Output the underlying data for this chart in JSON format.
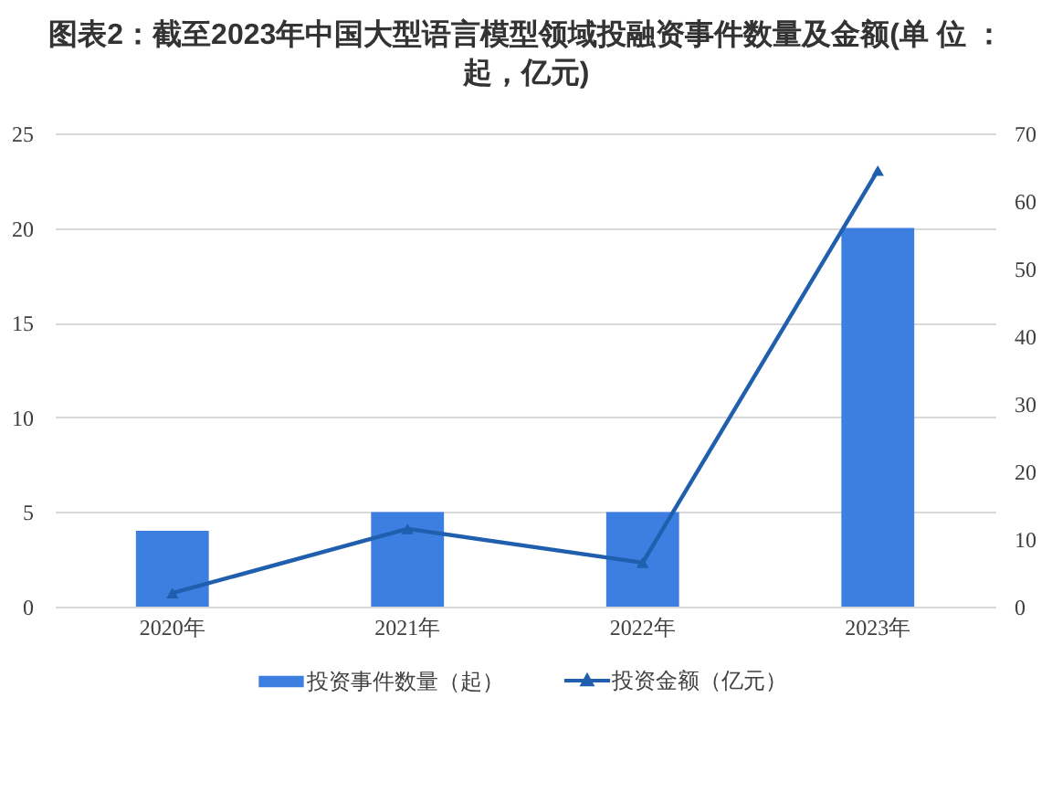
{
  "chart_data": {
    "type": "bar",
    "title": "图表2：截至2023年中国大型语言模型领域投融资事件数量及金额(单 位 ：起，亿元)",
    "categories": [
      "2020年",
      "2021年",
      "2022年",
      "2023年"
    ],
    "series": [
      {
        "name": "投资事件数量（起）",
        "color": "#3c7fe0",
        "values": [
          4,
          5,
          5,
          20
        ]
      },
      {
        "name": "投资金额（亿元）",
        "type": "line",
        "axis": "y2",
        "color": "#1f5fae",
        "values": [
          2,
          11.5,
          6.5,
          64.5
        ]
      }
    ],
    "ylim": [
      0,
      25
    ],
    "yticks": [
      0,
      5,
      10,
      15,
      20,
      25
    ],
    "y2lim": [
      0,
      70
    ],
    "y2ticks": [
      0,
      10,
      20,
      30,
      40,
      50,
      60,
      70
    ],
    "grid": "y",
    "legend": "bottom",
    "marker": "triangle"
  }
}
